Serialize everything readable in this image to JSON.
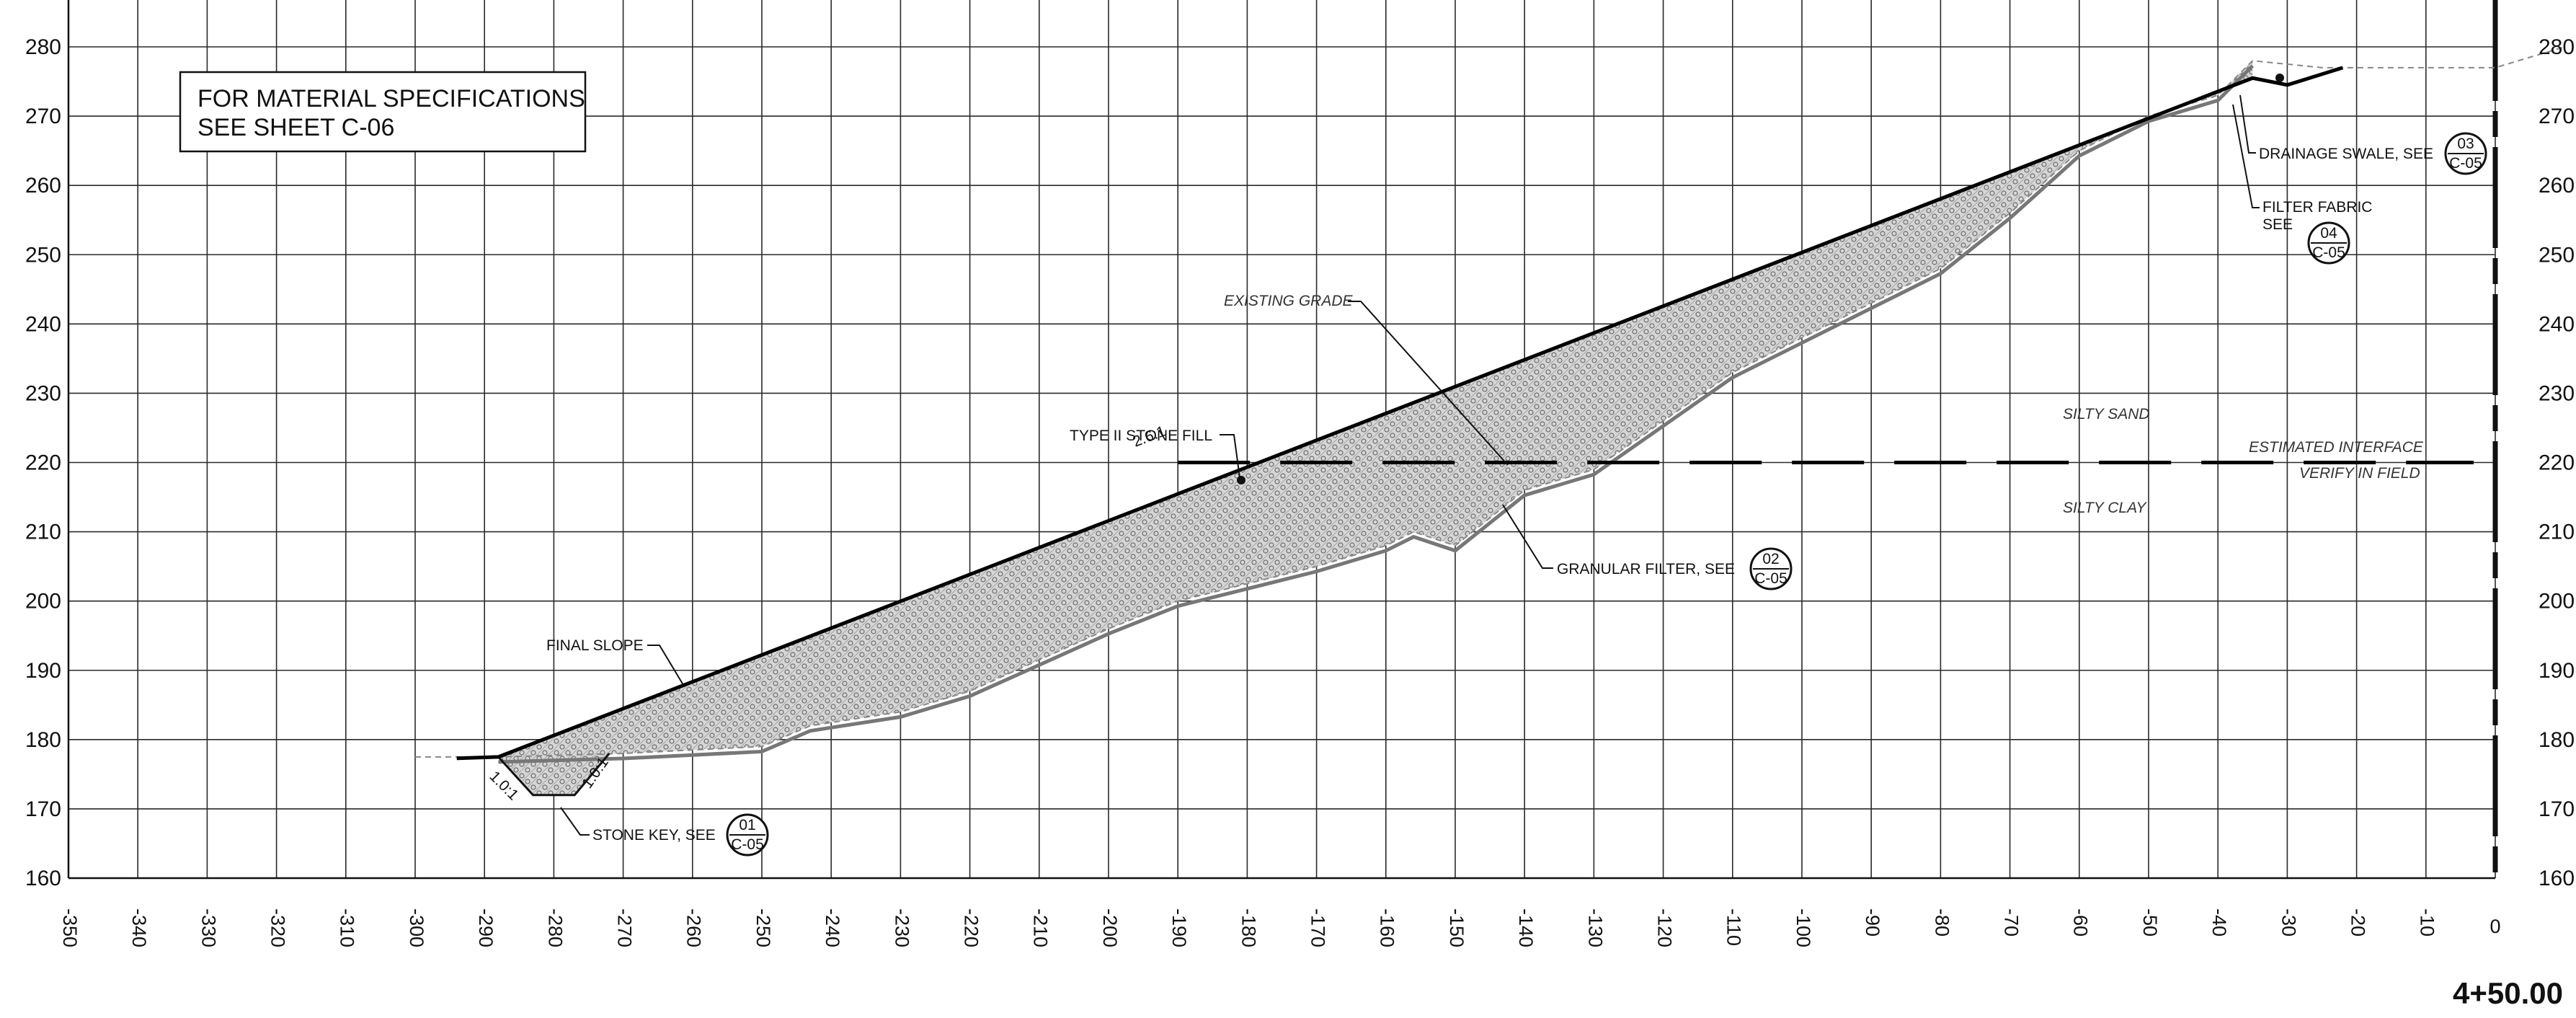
{
  "chart_data": {
    "type": "diagram",
    "title": "",
    "xlabel": "",
    "ylabel": "",
    "xlim": [
      -350,
      0
    ],
    "ylim": [
      160,
      280
    ],
    "x_ticks": [
      "-350",
      "-340",
      "-330",
      "-320",
      "-310",
      "-300",
      "-290",
      "-280",
      "-270",
      "-260",
      "-250",
      "-240",
      "-230",
      "-220",
      "-210",
      "-200",
      "-190",
      "-180",
      "-170",
      "-160",
      "-150",
      "-140",
      "-130",
      "-120",
      "-110",
      "-100",
      "-90",
      "-80",
      "-70",
      "-60",
      "-50",
      "-40",
      "-30",
      "-20",
      "-10",
      "0"
    ],
    "y_ticks": [
      "160",
      "170",
      "180",
      "190",
      "200",
      "210",
      "220",
      "230",
      "240",
      "250",
      "260",
      "270",
      "280"
    ],
    "y_ticks_right": [
      "160",
      "170",
      "180",
      "190",
      "200",
      "210",
      "220",
      "230",
      "240",
      "250",
      "260",
      "270",
      "280"
    ],
    "grid": true,
    "series": [
      {
        "name": "FINAL SLOPE",
        "points": [
          [
            -294,
            177.3
          ],
          [
            -288,
            177.5
          ],
          [
            -35,
            275.5
          ],
          [
            -30,
            274.5
          ],
          [
            -22,
            277
          ]
        ]
      },
      {
        "name": "EXISTING GRADE",
        "points": [
          [
            -300,
            177.5
          ],
          [
            -288,
            177.5
          ],
          [
            -270,
            178
          ],
          [
            -260,
            178.5
          ],
          [
            -250,
            179
          ],
          [
            -243,
            182
          ],
          [
            -230,
            184
          ],
          [
            -220,
            187
          ],
          [
            -200,
            196
          ],
          [
            -190,
            200
          ],
          [
            -170,
            205
          ],
          [
            -160,
            208
          ],
          [
            -156,
            210
          ],
          [
            -150,
            208
          ],
          [
            -140,
            216
          ],
          [
            -130,
            219
          ],
          [
            -120,
            226
          ],
          [
            -110,
            233
          ],
          [
            -100,
            238
          ],
          [
            -90,
            243
          ],
          [
            -80,
            248
          ],
          [
            -70,
            256
          ],
          [
            -60,
            265
          ],
          [
            -50,
            270
          ],
          [
            -40,
            273
          ],
          [
            -35,
            278
          ],
          [
            -25,
            277
          ],
          [
            0,
            277
          ],
          [
            10,
            280
          ]
        ]
      },
      {
        "name": "ESTIMATED INTERFACE",
        "points": [
          [
            -190,
            220
          ],
          [
            0,
            220
          ]
        ]
      }
    ],
    "annotations": {
      "note_line1": "FOR MATERIAL SPECIFICATIONS",
      "note_line2": "SEE SHEET C-06",
      "type_ii_stone_fill": "TYPE II STONE FILL",
      "slope_ratio": "2.6:1",
      "final_slope": "FINAL SLOPE",
      "existing_grade": "EXISTING GRADE",
      "granular_filter": "GRANULAR FILTER, SEE",
      "stone_key": "STONE KEY, SEE",
      "key_slope_left": "1.0:1",
      "key_slope_right": "1.0:1",
      "drainage_swale": "DRAINAGE SWALE, SEE",
      "filter_fabric_line1": "FILTER FABRIC",
      "filter_fabric_line2": "SEE",
      "silty_sand": "SILTY SAND",
      "silty_clay": "SILTY CLAY",
      "estimated_interface": "ESTIMATED INTERFACE",
      "verify_in_field": "VERIFY IN FIELD",
      "station": "4+50.00"
    },
    "detail_refs": {
      "stone_key": {
        "top": "01",
        "bottom": "C-05"
      },
      "granular_filter": {
        "top": "02",
        "bottom": "C-05"
      },
      "drainage_swale": {
        "top": "03",
        "bottom": "C-05"
      },
      "filter_fabric": {
        "top": "04",
        "bottom": "C-05"
      }
    }
  }
}
